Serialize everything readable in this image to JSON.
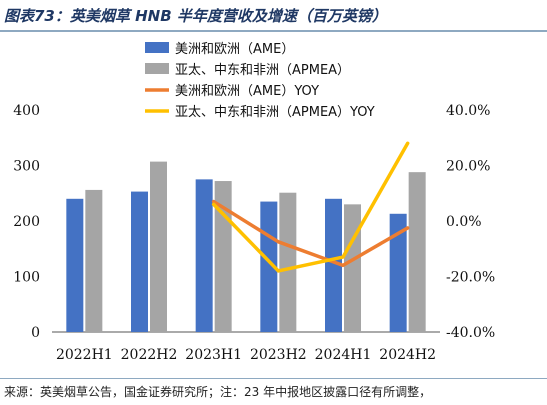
{
  "header": {
    "title": "图表73：英美烟草 HNB 半年度营收及增速（百万英镑）"
  },
  "footer": {
    "source": "来源：英美烟草公告，国金证券研究所；注：23 年中报地区披露口径有所调整，"
  },
  "chart_data": {
    "type": "bar",
    "categories": [
      "2022H1",
      "2022H2",
      "2023H1",
      "2023H2",
      "2024H1",
      "2024H2"
    ],
    "series": [
      {
        "name": "美洲和欧洲（AME）",
        "kind": "bar",
        "axis": "left",
        "color": "#4472c4",
        "values": [
          240,
          253,
          275,
          235,
          240,
          213
        ]
      },
      {
        "name": "亚太、中东和非洲（APMEA）",
        "kind": "bar",
        "axis": "left",
        "color": "#a5a5a5",
        "values": [
          256,
          307,
          272,
          251,
          230,
          288
        ]
      },
      {
        "name": "美洲和欧洲（AME）YOY",
        "kind": "line",
        "axis": "right",
        "color": "#ed7d31",
        "values": [
          null,
          null,
          7.0,
          -7.5,
          -16.0,
          -2.5
        ]
      },
      {
        "name": "亚太、中东和非洲（APMEA）YOY",
        "kind": "line",
        "axis": "right",
        "color": "#ffc000",
        "values": [
          null,
          null,
          6.0,
          -18.0,
          -13.0,
          28.0
        ]
      }
    ],
    "y_left": {
      "min": 0,
      "max": 400,
      "ticks": [
        0,
        100,
        200,
        300,
        400
      ]
    },
    "y_right": {
      "min": -40,
      "max": 40,
      "ticks": [
        40,
        20,
        0,
        -20,
        -40
      ],
      "tick_labels": [
        "40.0%",
        "20.0%",
        "0.0%",
        "-20.0%",
        "-40.0%"
      ]
    },
    "legend_position": "top-left",
    "grid": false
  }
}
